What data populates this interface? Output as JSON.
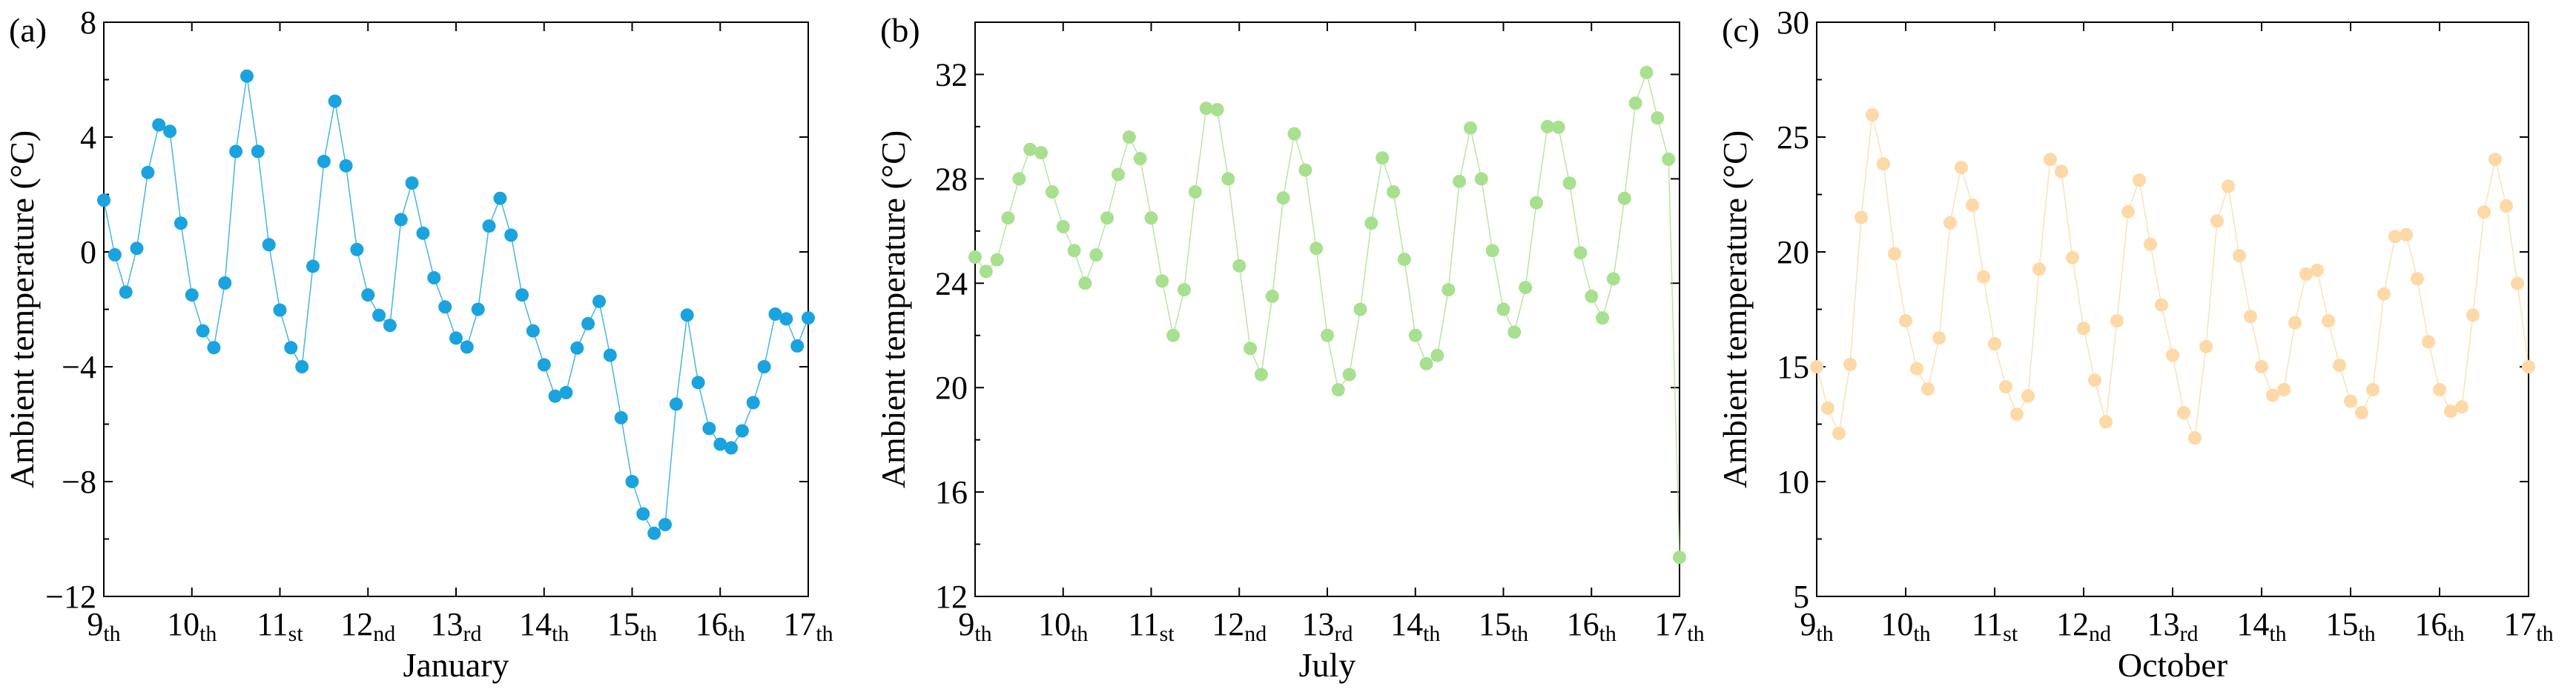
{
  "panels": [
    {
      "tag": "(a)",
      "xlabel": "January",
      "ylabel": "Ambient temperature (°C)",
      "yticks": [
        -12,
        -8,
        -4,
        0,
        4,
        8
      ],
      "xticks": [
        {
          "n": "9",
          "s": "th"
        },
        {
          "n": "10",
          "s": "th"
        },
        {
          "n": "11",
          "s": "st"
        },
        {
          "n": "12",
          "s": "nd"
        },
        {
          "n": "13",
          "s": "rd"
        },
        {
          "n": "14",
          "s": "th"
        },
        {
          "n": "15",
          "s": "th"
        },
        {
          "n": "16",
          "s": "th"
        },
        {
          "n": "17",
          "s": "th"
        }
      ],
      "color": "#1aa3de"
    },
    {
      "tag": "(b)",
      "xlabel": "July",
      "ylabel": "Ambient temperature (°C)",
      "yticks": [
        12,
        16,
        20,
        24,
        28,
        32
      ],
      "xticks": [
        {
          "n": "9",
          "s": "th"
        },
        {
          "n": "10",
          "s": "th"
        },
        {
          "n": "11",
          "s": "st"
        },
        {
          "n": "12",
          "s": "nd"
        },
        {
          "n": "13",
          "s": "rd"
        },
        {
          "n": "14",
          "s": "th"
        },
        {
          "n": "15",
          "s": "th"
        },
        {
          "n": "16",
          "s": "th"
        },
        {
          "n": "17",
          "s": "th"
        }
      ],
      "color": "#a8e08f"
    },
    {
      "tag": "(c)",
      "xlabel": "October",
      "ylabel": "Ambient temperature (°C)",
      "yticks": [
        5,
        10,
        15,
        20,
        25,
        30
      ],
      "xticks": [
        {
          "n": "9",
          "s": "th"
        },
        {
          "n": "10",
          "s": "th"
        },
        {
          "n": "11",
          "s": "st"
        },
        {
          "n": "12",
          "s": "nd"
        },
        {
          "n": "13",
          "s": "rd"
        },
        {
          "n": "14",
          "s": "th"
        },
        {
          "n": "15",
          "s": "th"
        },
        {
          "n": "16",
          "s": "th"
        },
        {
          "n": "17",
          "s": "th"
        }
      ],
      "color": "#fcd9a6"
    }
  ],
  "chart_data": [
    {
      "type": "line",
      "title": "(a)",
      "xlabel": "January",
      "ylabel": "Ambient temperature (°C)",
      "xlim": [
        9,
        17
      ],
      "ylim": [
        -12,
        8
      ],
      "x_unit": "day of January",
      "series": [
        {
          "keypoints": [
            [
              9.0,
              1.8
            ],
            [
              9.1,
              0.2
            ],
            [
              9.2,
              -1.0
            ],
            [
              9.3,
              -1.8
            ],
            [
              9.35,
              -0.5
            ],
            [
              9.45,
              2.0
            ],
            [
              9.6,
              4.3
            ],
            [
              9.7,
              4.8
            ],
            [
              9.75,
              4.2
            ],
            [
              9.85,
              1.5
            ],
            [
              10.0,
              -1.5
            ],
            [
              10.15,
              -3.0
            ],
            [
              10.3,
              -3.5
            ],
            [
              10.35,
              -2.0
            ],
            [
              10.5,
              3.5
            ],
            [
              10.6,
              6.5
            ],
            [
              10.7,
              5.0
            ],
            [
              10.8,
              2.0
            ],
            [
              10.95,
              -1.5
            ],
            [
              11.15,
              -3.6
            ],
            [
              11.25,
              -4.0
            ],
            [
              11.3,
              -2.5
            ],
            [
              11.45,
              1.5
            ],
            [
              11.55,
              4.8
            ],
            [
              11.65,
              5.4
            ],
            [
              11.75,
              3.0
            ],
            [
              11.9,
              -0.5
            ],
            [
              12.05,
              -2.0
            ],
            [
              12.3,
              -2.7
            ],
            [
              12.35,
              0.5
            ],
            [
              12.45,
              3.0
            ],
            [
              12.55,
              1.8
            ],
            [
              12.7,
              -0.5
            ],
            [
              12.85,
              -1.7
            ],
            [
              13.0,
              -3.0
            ],
            [
              13.2,
              -3.5
            ],
            [
              13.3,
              -0.5
            ],
            [
              13.45,
              2.3
            ],
            [
              13.6,
              1.0
            ],
            [
              13.75,
              -1.5
            ],
            [
              13.95,
              -3.5
            ],
            [
              14.1,
              -4.8
            ],
            [
              14.2,
              -5.7
            ],
            [
              14.35,
              -3.3
            ],
            [
              14.45,
              -3.5
            ],
            [
              14.55,
              -1.5
            ],
            [
              14.6,
              -1.4
            ],
            [
              14.7,
              -2.7
            ],
            [
              14.8,
              -4.5
            ],
            [
              14.9,
              -6.2
            ],
            [
              15.0,
              -8.0
            ],
            [
              15.1,
              -9.0
            ],
            [
              15.2,
              -9.5
            ],
            [
              15.3,
              -10.1
            ],
            [
              15.4,
              -9.3
            ],
            [
              15.5,
              -5.3
            ],
            [
              15.6,
              -1.8
            ],
            [
              15.7,
              -3.4
            ],
            [
              15.8,
              -5.7
            ],
            [
              15.95,
              -6.6
            ],
            [
              16.1,
              -6.9
            ],
            [
              16.2,
              -6.6
            ],
            [
              16.35,
              -5.5
            ],
            [
              16.5,
              -4.0
            ],
            [
              16.65,
              -1.8
            ],
            [
              16.8,
              -2.6
            ],
            [
              16.9,
              -3.5
            ],
            [
              17.0,
              -2.3
            ]
          ]
        }
      ]
    },
    {
      "type": "line",
      "title": "(b)",
      "xlabel": "July",
      "ylabel": "Ambient temperature (°C)",
      "xlim": [
        9,
        17
      ],
      "ylim": [
        12,
        34
      ],
      "x_unit": "day of July",
      "series": [
        {
          "keypoints": [
            [
              9.0,
              25.0
            ],
            [
              9.1,
              24.5
            ],
            [
              9.2,
              24.3
            ],
            [
              9.3,
              25.5
            ],
            [
              9.45,
              27.5
            ],
            [
              9.6,
              29.0
            ],
            [
              9.7,
              29.5
            ],
            [
              9.8,
              28.5
            ],
            [
              9.95,
              26.5
            ],
            [
              10.1,
              25.5
            ],
            [
              10.25,
              24.0
            ],
            [
              10.35,
              24.8
            ],
            [
              10.5,
              26.5
            ],
            [
              10.65,
              28.5
            ],
            [
              10.75,
              29.6
            ],
            [
              10.85,
              29.2
            ],
            [
              10.95,
              27.5
            ],
            [
              11.1,
              24.5
            ],
            [
              11.25,
              22.0
            ],
            [
              11.35,
              23.0
            ],
            [
              11.5,
              27.5
            ],
            [
              11.6,
              30.5
            ],
            [
              11.7,
              31.3
            ],
            [
              11.8,
              30.0
            ],
            [
              11.95,
              26.0
            ],
            [
              12.1,
              22.0
            ],
            [
              12.2,
              20.0
            ],
            [
              12.3,
              21.0
            ],
            [
              12.45,
              26.0
            ],
            [
              12.6,
              29.8
            ],
            [
              12.7,
              29.5
            ],
            [
              12.85,
              26.0
            ],
            [
              13.0,
              22.0
            ],
            [
              13.15,
              19.5
            ],
            [
              13.3,
              21.0
            ],
            [
              13.45,
              25.0
            ],
            [
              13.6,
              28.9
            ],
            [
              13.7,
              28.5
            ],
            [
              13.85,
              25.5
            ],
            [
              14.0,
              22.0
            ],
            [
              14.15,
              20.7
            ],
            [
              14.3,
              21.5
            ],
            [
              14.45,
              26.0
            ],
            [
              14.55,
              29.8
            ],
            [
              14.65,
              30.0
            ],
            [
              14.8,
              27.0
            ],
            [
              14.95,
              23.5
            ],
            [
              15.1,
              22.0
            ],
            [
              15.2,
              22.5
            ],
            [
              15.35,
              26.5
            ],
            [
              15.5,
              30.0
            ],
            [
              15.6,
              30.3
            ],
            [
              15.7,
              29.0
            ],
            [
              15.85,
              25.5
            ],
            [
              16.0,
              23.5
            ],
            [
              16.15,
              22.5
            ],
            [
              16.3,
              25.0
            ],
            [
              16.45,
              29.5
            ],
            [
              16.55,
              32.3
            ],
            [
              16.65,
              32.0
            ],
            [
              16.8,
              29.5
            ],
            [
              16.9,
              28.5
            ],
            [
              17.0,
              13.5
            ]
          ]
        }
      ]
    },
    {
      "type": "line",
      "title": "(c)",
      "xlabel": "October",
      "ylabel": "Ambient temperature (°C)",
      "xlim": [
        9,
        17
      ],
      "ylim": [
        5,
        30
      ],
      "x_unit": "day of October",
      "series": [
        {
          "keypoints": [
            [
              9.0,
              15.0
            ],
            [
              9.1,
              13.5
            ],
            [
              9.2,
              12.3
            ],
            [
              9.3,
              11.9
            ],
            [
              9.35,
              13.8
            ],
            [
              9.45,
              19.0
            ],
            [
              9.55,
              24.0
            ],
            [
              9.62,
              26.0
            ],
            [
              9.7,
              25.5
            ],
            [
              9.85,
              20.5
            ],
            [
              10.0,
              17.0
            ],
            [
              10.15,
              14.5
            ],
            [
              10.3,
              13.8
            ],
            [
              10.35,
              15.0
            ],
            [
              10.45,
              20.0
            ],
            [
              10.6,
              23.8
            ],
            [
              10.7,
              23.3
            ],
            [
              10.85,
              19.5
            ],
            [
              11.0,
              16.0
            ],
            [
              11.2,
              13.0
            ],
            [
              11.35,
              12.8
            ],
            [
              11.45,
              16.5
            ],
            [
              11.55,
              22.0
            ],
            [
              11.65,
              24.7
            ],
            [
              11.75,
              23.5
            ],
            [
              11.9,
              19.0
            ],
            [
              12.05,
              15.5
            ],
            [
              12.25,
              12.6
            ],
            [
              12.3,
              14.0
            ],
            [
              12.45,
              20.0
            ],
            [
              12.55,
              23.5
            ],
            [
              12.65,
              23.0
            ],
            [
              12.8,
              19.0
            ],
            [
              13.0,
              15.5
            ],
            [
              13.15,
              12.5
            ],
            [
              13.3,
              11.6
            ],
            [
              13.35,
              14.5
            ],
            [
              13.45,
              20.0
            ],
            [
              13.58,
              23.5
            ],
            [
              13.65,
              22.5
            ],
            [
              13.8,
              18.5
            ],
            [
              14.0,
              15.0
            ],
            [
              14.15,
              13.5
            ],
            [
              14.25,
              14.0
            ],
            [
              14.4,
              17.5
            ],
            [
              14.55,
              19.8
            ],
            [
              14.65,
              19.0
            ],
            [
              14.8,
              16.0
            ],
            [
              15.0,
              13.5
            ],
            [
              15.2,
              12.7
            ],
            [
              15.25,
              14.0
            ],
            [
              15.4,
              19.0
            ],
            [
              15.55,
              21.5
            ],
            [
              15.7,
              20.0
            ],
            [
              15.85,
              16.5
            ],
            [
              16.0,
              14.0
            ],
            [
              16.2,
              12.5
            ],
            [
              16.3,
              14.0
            ],
            [
              16.45,
              20.5
            ],
            [
              16.6,
              24.2
            ],
            [
              16.7,
              23.5
            ],
            [
              16.8,
              20.5
            ],
            [
              16.9,
              18.0
            ],
            [
              17.0,
              15.0
            ]
          ]
        }
      ]
    }
  ]
}
